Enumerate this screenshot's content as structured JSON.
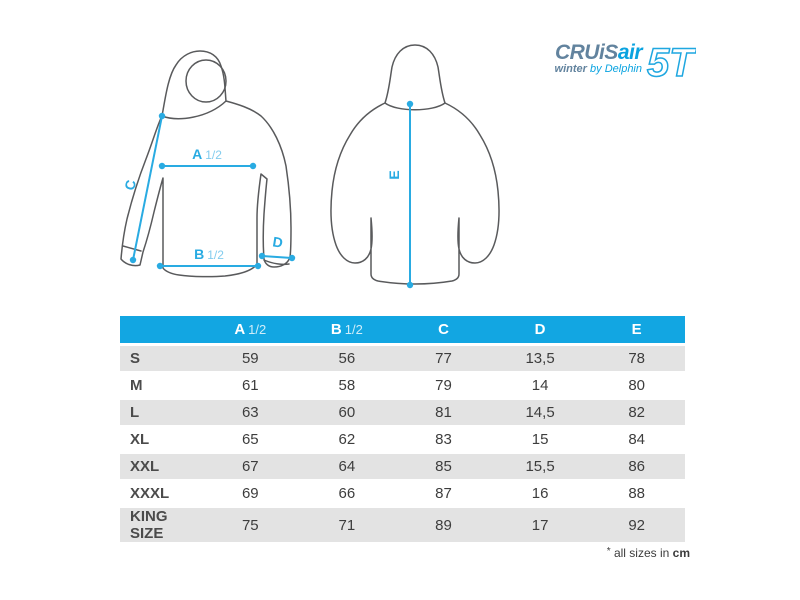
{
  "brand": {
    "name_part1": "CRUiS",
    "name_part2": "air",
    "name_part3": "5T",
    "tagline_bold": "winter",
    "tagline_rest": "by Delphin"
  },
  "colors": {
    "accent_cyan": "#29abe2",
    "header_cyan": "#12a6e2",
    "logo_slate": "#62839e",
    "row_grey": "#e3e3e3",
    "outline_grey": "#595a5c"
  },
  "diagram": {
    "front": {
      "label_a": "A",
      "label_a_sub": "1/2",
      "label_b": "B",
      "label_b_sub": "1/2",
      "label_c": "C",
      "label_d": "D"
    },
    "back": {
      "label_e": "E"
    }
  },
  "table": {
    "size_col_header": "",
    "columns": [
      {
        "label": "A",
        "sub": "1/2"
      },
      {
        "label": "B",
        "sub": "1/2"
      },
      {
        "label": "C",
        "sub": ""
      },
      {
        "label": "D",
        "sub": ""
      },
      {
        "label": "E",
        "sub": ""
      }
    ],
    "rows": [
      {
        "size": "S",
        "values": [
          "59",
          "56",
          "77",
          "13,5",
          "78"
        ]
      },
      {
        "size": "M",
        "values": [
          "61",
          "58",
          "79",
          "14",
          "80"
        ]
      },
      {
        "size": "L",
        "values": [
          "63",
          "60",
          "81",
          "14,5",
          "82"
        ]
      },
      {
        "size": "XL",
        "values": [
          "65",
          "62",
          "83",
          "15",
          "84"
        ]
      },
      {
        "size": "XXL",
        "values": [
          "67",
          "64",
          "85",
          "15,5",
          "86"
        ]
      },
      {
        "size": "XXXL",
        "values": [
          "69",
          "66",
          "87",
          "16",
          "88"
        ]
      },
      {
        "size": "KING SIZE",
        "values": [
          "75",
          "71",
          "89",
          "17",
          "92"
        ]
      }
    ]
  },
  "footnote": {
    "marker": "*",
    "text": " all sizes in ",
    "unit": "cm"
  },
  "chart_data": {
    "type": "table",
    "title": "CRUiSair 5T winter jacket size chart",
    "columns": [
      "A 1/2",
      "B 1/2",
      "C",
      "D",
      "E"
    ],
    "rows": [
      "S",
      "M",
      "L",
      "XL",
      "XXL",
      "XXXL",
      "KING SIZE"
    ],
    "values": [
      [
        59,
        56,
        77,
        13.5,
        78
      ],
      [
        61,
        58,
        79,
        14,
        80
      ],
      [
        63,
        60,
        81,
        14.5,
        82
      ],
      [
        65,
        62,
        83,
        15,
        84
      ],
      [
        67,
        64,
        85,
        15.5,
        86
      ],
      [
        69,
        66,
        87,
        16,
        88
      ],
      [
        75,
        71,
        89,
        17,
        92
      ]
    ],
    "unit": "cm"
  }
}
